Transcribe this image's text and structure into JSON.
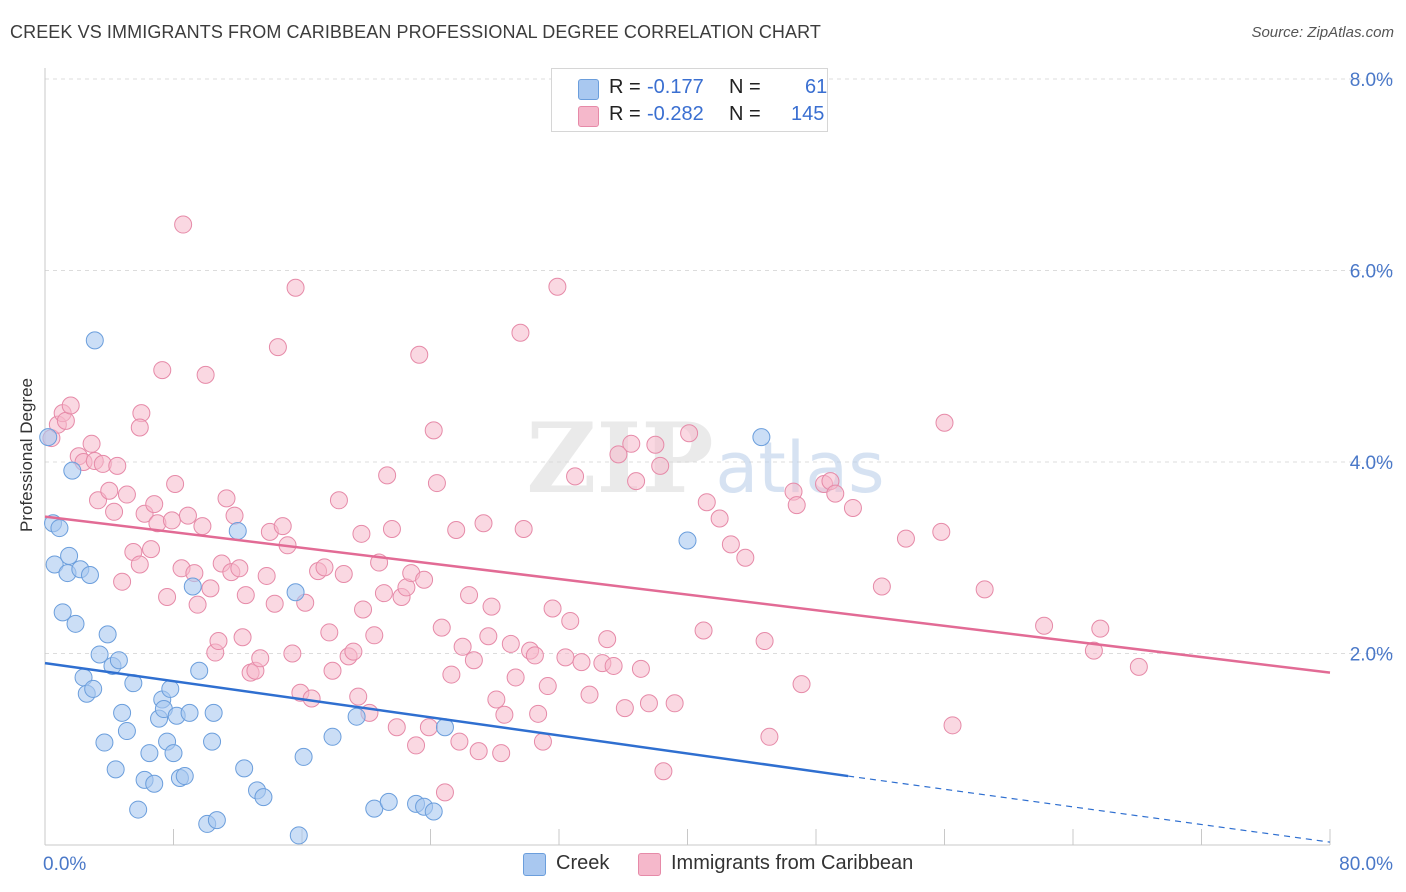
{
  "header": {
    "title": "CREEK VS IMMIGRANTS FROM CARIBBEAN PROFESSIONAL DEGREE CORRELATION CHART",
    "source": "Source: ZipAtlas.com"
  },
  "watermark": {
    "zip": "ZIP",
    "atlas": "atlas"
  },
  "legend": {
    "rows": [
      {
        "r_label": "R =",
        "r_value": "-0.177",
        "n_label": "N =",
        "n_value": "61",
        "color": "#a9c8f0"
      },
      {
        "r_label": "R =",
        "r_value": "-0.282",
        "n_label": "N =",
        "n_value": "145",
        "color": "#f5b8cb"
      }
    ]
  },
  "colors": {
    "creek_fill": "#a9c8f0",
    "creek_stroke": "#6b9edc",
    "creek_line": "#2f6fd0",
    "carib_fill": "#f5b8cb",
    "carib_stroke": "#e68aa8",
    "carib_line": "#e26b95",
    "tick_text": "#4a78c8",
    "grid": "#dcdcdc"
  },
  "chart_data": {
    "type": "scatter",
    "title": "CREEK VS IMMIGRANTS FROM CARIBBEAN PROFESSIONAL DEGREE CORRELATION CHART",
    "xlabel": "",
    "ylabel": "Professional Degree",
    "xlim": [
      0,
      80
    ],
    "ylim": [
      0,
      8
    ],
    "x_tick_labels": [
      "0.0%",
      "80.0%"
    ],
    "y_ticks": [
      2,
      4,
      6,
      8
    ],
    "y_tick_labels": [
      "2.0%",
      "4.0%",
      "6.0%",
      "8.0%"
    ],
    "grid": true,
    "legend_position": "top-center",
    "series": [
      {
        "name": "Creek",
        "trend": {
          "x": [
            0,
            50
          ],
          "y": [
            1.9,
            0.72
          ],
          "dashed_extension_to": [
            80,
            0.03
          ]
        },
        "points": [
          [
            0.2,
            4.26
          ],
          [
            0.5,
            3.36
          ],
          [
            0.6,
            2.93
          ],
          [
            0.9,
            3.31
          ],
          [
            1.1,
            2.43
          ],
          [
            1.4,
            2.84
          ],
          [
            1.5,
            3.02
          ],
          [
            1.7,
            3.91
          ],
          [
            1.9,
            2.31
          ],
          [
            2.2,
            2.88
          ],
          [
            2.4,
            1.75
          ],
          [
            2.6,
            1.58
          ],
          [
            2.8,
            2.82
          ],
          [
            3.0,
            1.63
          ],
          [
            3.1,
            5.27
          ],
          [
            3.4,
            1.99
          ],
          [
            3.7,
            1.07
          ],
          [
            3.9,
            2.2
          ],
          [
            4.2,
            1.87
          ],
          [
            4.4,
            0.79
          ],
          [
            4.6,
            1.93
          ],
          [
            4.8,
            1.38
          ],
          [
            5.1,
            1.19
          ],
          [
            5.5,
            1.69
          ],
          [
            5.8,
            0.37
          ],
          [
            6.2,
            0.68
          ],
          [
            6.5,
            0.96
          ],
          [
            6.8,
            0.64
          ],
          [
            7.1,
            1.32
          ],
          [
            7.3,
            1.52
          ],
          [
            7.4,
            1.42
          ],
          [
            7.6,
            1.08
          ],
          [
            7.8,
            1.63
          ],
          [
            8.0,
            0.96
          ],
          [
            8.2,
            1.35
          ],
          [
            8.4,
            0.7
          ],
          [
            8.7,
            0.72
          ],
          [
            9.0,
            1.38
          ],
          [
            9.2,
            2.7
          ],
          [
            9.6,
            1.82
          ],
          [
            10.1,
            0.22
          ],
          [
            10.4,
            1.08
          ],
          [
            10.5,
            1.38
          ],
          [
            10.7,
            0.26
          ],
          [
            12.0,
            3.28
          ],
          [
            12.4,
            0.8
          ],
          [
            13.2,
            0.57
          ],
          [
            13.6,
            0.5
          ],
          [
            15.6,
            2.64
          ],
          [
            15.8,
            0.1
          ],
          [
            16.1,
            0.92
          ],
          [
            17.9,
            1.13
          ],
          [
            19.4,
            1.34
          ],
          [
            20.5,
            0.38
          ],
          [
            21.4,
            0.45
          ],
          [
            23.1,
            0.43
          ],
          [
            23.6,
            0.4
          ],
          [
            24.2,
            0.35
          ],
          [
            24.9,
            1.23
          ],
          [
            40.0,
            3.18
          ],
          [
            44.6,
            4.26
          ]
        ]
      },
      {
        "name": "Immigrants from Caribbean",
        "trend": {
          "x": [
            0,
            80
          ],
          "y": [
            3.43,
            1.8
          ]
        },
        "points": [
          [
            0.4,
            4.25
          ],
          [
            0.8,
            4.39
          ],
          [
            1.1,
            4.51
          ],
          [
            1.3,
            4.43
          ],
          [
            1.6,
            4.59
          ],
          [
            2.1,
            4.06
          ],
          [
            2.4,
            4.0
          ],
          [
            2.9,
            4.19
          ],
          [
            3.1,
            4.01
          ],
          [
            3.3,
            3.6
          ],
          [
            3.6,
            3.98
          ],
          [
            4.0,
            3.7
          ],
          [
            4.3,
            3.48
          ],
          [
            4.5,
            3.96
          ],
          [
            4.8,
            2.75
          ],
          [
            5.1,
            3.66
          ],
          [
            5.5,
            3.06
          ],
          [
            5.9,
            2.93
          ],
          [
            6.0,
            4.51
          ],
          [
            6.2,
            3.46
          ],
          [
            6.6,
            3.09
          ],
          [
            6.8,
            3.56
          ],
          [
            7.0,
            3.36
          ],
          [
            7.3,
            4.96
          ],
          [
            7.6,
            2.59
          ],
          [
            7.9,
            3.39
          ],
          [
            8.1,
            3.77
          ],
          [
            8.5,
            2.89
          ],
          [
            8.6,
            6.48
          ],
          [
            8.9,
            3.44
          ],
          [
            9.3,
            2.84
          ],
          [
            9.5,
            2.51
          ],
          [
            9.8,
            3.33
          ],
          [
            10.0,
            4.91
          ],
          [
            10.3,
            2.68
          ],
          [
            10.6,
            2.01
          ],
          [
            10.8,
            2.13
          ],
          [
            11.0,
            2.94
          ],
          [
            11.3,
            3.62
          ],
          [
            11.6,
            2.85
          ],
          [
            11.8,
            3.44
          ],
          [
            12.1,
            2.89
          ],
          [
            12.3,
            2.17
          ],
          [
            12.5,
            2.61
          ],
          [
            12.8,
            1.8
          ],
          [
            13.1,
            1.82
          ],
          [
            13.4,
            1.95
          ],
          [
            13.8,
            2.81
          ],
          [
            14.0,
            3.27
          ],
          [
            14.3,
            2.52
          ],
          [
            14.5,
            5.2
          ],
          [
            14.8,
            3.33
          ],
          [
            15.1,
            3.13
          ],
          [
            15.4,
            2.0
          ],
          [
            15.6,
            5.82
          ],
          [
            15.9,
            1.59
          ],
          [
            16.2,
            2.53
          ],
          [
            16.6,
            1.53
          ],
          [
            17.0,
            2.86
          ],
          [
            17.4,
            2.9
          ],
          [
            17.7,
            2.22
          ],
          [
            17.9,
            1.82
          ],
          [
            18.3,
            3.6
          ],
          [
            18.6,
            2.83
          ],
          [
            18.9,
            1.97
          ],
          [
            19.2,
            2.02
          ],
          [
            19.5,
            1.55
          ],
          [
            19.8,
            2.46
          ],
          [
            20.2,
            1.38
          ],
          [
            20.5,
            2.19
          ],
          [
            20.8,
            2.95
          ],
          [
            21.1,
            2.63
          ],
          [
            21.3,
            3.86
          ],
          [
            21.6,
            3.3
          ],
          [
            21.9,
            1.23
          ],
          [
            22.2,
            2.59
          ],
          [
            22.5,
            2.69
          ],
          [
            22.8,
            2.84
          ],
          [
            23.1,
            1.04
          ],
          [
            23.3,
            5.12
          ],
          [
            23.6,
            2.77
          ],
          [
            23.9,
            1.23
          ],
          [
            24.2,
            4.33
          ],
          [
            24.4,
            3.78
          ],
          [
            24.7,
            2.27
          ],
          [
            24.9,
            0.55
          ],
          [
            25.3,
            1.78
          ],
          [
            25.6,
            3.29
          ],
          [
            25.8,
            1.08
          ],
          [
            26.0,
            2.07
          ],
          [
            26.4,
            2.61
          ],
          [
            26.7,
            1.93
          ],
          [
            27.0,
            0.98
          ],
          [
            27.3,
            3.36
          ],
          [
            27.6,
            2.18
          ],
          [
            27.8,
            2.49
          ],
          [
            28.1,
            1.52
          ],
          [
            28.4,
            0.96
          ],
          [
            28.6,
            1.36
          ],
          [
            29.0,
            2.1
          ],
          [
            29.3,
            1.75
          ],
          [
            29.6,
            5.35
          ],
          [
            29.8,
            3.3
          ],
          [
            30.2,
            2.03
          ],
          [
            30.5,
            1.98
          ],
          [
            30.7,
            1.37
          ],
          [
            31.0,
            1.08
          ],
          [
            31.3,
            1.66
          ],
          [
            31.6,
            2.47
          ],
          [
            31.9,
            5.83
          ],
          [
            32.4,
            1.96
          ],
          [
            32.7,
            2.34
          ],
          [
            33.0,
            3.85
          ],
          [
            33.4,
            1.91
          ],
          [
            33.9,
            1.57
          ],
          [
            34.7,
            1.9
          ],
          [
            35.0,
            2.15
          ],
          [
            35.4,
            1.87
          ],
          [
            35.7,
            4.08
          ],
          [
            36.1,
            1.43
          ],
          [
            36.5,
            4.19
          ],
          [
            36.8,
            3.8
          ],
          [
            37.1,
            1.84
          ],
          [
            37.6,
            1.48
          ],
          [
            38.0,
            4.18
          ],
          [
            38.3,
            3.96
          ],
          [
            38.5,
            0.77
          ],
          [
            39.2,
            1.48
          ],
          [
            40.1,
            4.3
          ],
          [
            41.0,
            2.24
          ],
          [
            41.2,
            3.58
          ],
          [
            42.0,
            3.41
          ],
          [
            42.7,
            3.14
          ],
          [
            43.6,
            3.0
          ],
          [
            44.8,
            2.13
          ],
          [
            45.1,
            1.13
          ],
          [
            46.6,
            3.69
          ],
          [
            46.8,
            3.55
          ],
          [
            47.1,
            1.68
          ],
          [
            48.5,
            3.77
          ],
          [
            48.9,
            3.8
          ],
          [
            49.2,
            3.67
          ],
          [
            50.3,
            3.52
          ],
          [
            52.1,
            2.7
          ],
          [
            53.6,
            3.2
          ],
          [
            55.8,
            3.27
          ],
          [
            56.0,
            4.41
          ],
          [
            56.5,
            1.25
          ],
          [
            58.5,
            2.67
          ],
          [
            62.2,
            2.29
          ],
          [
            65.3,
            2.03
          ],
          [
            65.7,
            2.26
          ],
          [
            68.1,
            1.86
          ],
          [
            5.9,
            4.36
          ],
          [
            19.7,
            3.25
          ]
        ]
      }
    ]
  },
  "bottom_legend": [
    "Creek",
    "Immigrants from Caribbean"
  ]
}
